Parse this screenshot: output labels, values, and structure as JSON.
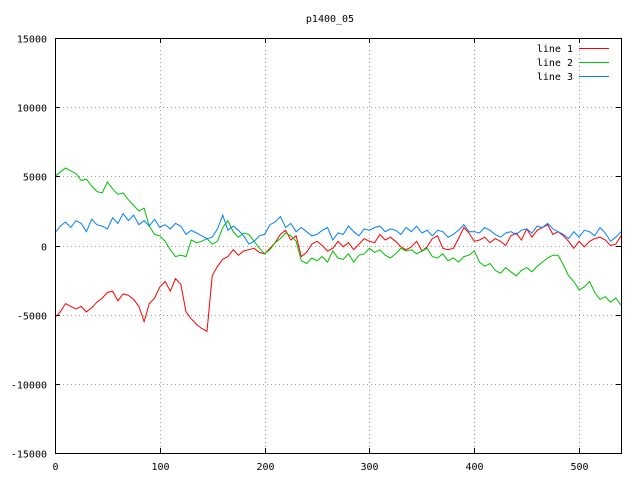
{
  "chart_data": {
    "type": "line",
    "title": "p1400_05",
    "xlabel": "",
    "ylabel": "",
    "xlim": [
      0,
      540
    ],
    "ylim": [
      -15000,
      15000
    ],
    "xticks": [
      0,
      100,
      200,
      300,
      400,
      500
    ],
    "yticks": [
      -15000,
      -10000,
      -5000,
      0,
      5000,
      10000,
      15000
    ],
    "grid": true,
    "legend_position": "top-right",
    "series": [
      {
        "name": "line 1",
        "color": "#ff0000",
        "x": [
          0,
          5,
          10,
          15,
          20,
          25,
          30,
          35,
          40,
          45,
          50,
          55,
          60,
          65,
          70,
          75,
          80,
          85,
          90,
          95,
          100,
          105,
          110,
          115,
          120,
          125,
          130,
          135,
          140,
          145,
          150,
          155,
          160,
          165,
          170,
          175,
          180,
          185,
          190,
          195,
          200,
          205,
          210,
          215,
          220,
          225,
          230,
          235,
          240,
          245,
          250,
          255,
          260,
          265,
          270,
          275,
          280,
          285,
          290,
          295,
          300,
          305,
          310,
          315,
          320,
          325,
          330,
          335,
          340,
          345,
          350,
          355,
          360,
          365,
          370,
          375,
          380,
          385,
          390,
          395,
          400,
          405,
          410,
          415,
          420,
          425,
          430,
          435,
          440,
          445,
          450,
          455,
          460,
          465,
          470,
          475,
          480,
          485,
          490,
          495,
          500,
          505,
          510,
          515,
          520,
          525,
          530,
          535,
          540
        ],
        "y": [
          -5200,
          -4800,
          -4200,
          -4400,
          -4600,
          -4400,
          -4800,
          -4500,
          -4100,
          -3800,
          -3400,
          -3300,
          -4000,
          -3500,
          -3600,
          -3900,
          -4400,
          -5500,
          -4200,
          -3800,
          -3000,
          -2600,
          -3300,
          -2400,
          -2800,
          -4800,
          -5300,
          -5700,
          -6000,
          -6200,
          -2200,
          -1500,
          -1000,
          -800,
          -300,
          -700,
          -400,
          -300,
          -200,
          -500,
          -600,
          -200,
          200,
          800,
          1100,
          400,
          700,
          -800,
          -500,
          100,
          300,
          0,
          -400,
          -200,
          300,
          -100,
          200,
          -300,
          100,
          500,
          300,
          200,
          800,
          400,
          600,
          300,
          -100,
          -300,
          -100,
          300,
          -400,
          -100,
          500,
          700,
          -200,
          -300,
          -200,
          500,
          1300,
          900,
          300,
          400,
          600,
          200,
          500,
          300,
          0,
          700,
          900,
          400,
          1200,
          600,
          1100,
          1300,
          1500,
          800,
          1000,
          700,
          300,
          -200,
          300,
          -100,
          300,
          500,
          600,
          400,
          0,
          100,
          700
        ]
      },
      {
        "name": "line 2",
        "color": "#00c000",
        "x": [
          0,
          5,
          10,
          15,
          20,
          25,
          30,
          35,
          40,
          45,
          50,
          55,
          60,
          65,
          70,
          75,
          80,
          85,
          90,
          95,
          100,
          105,
          110,
          115,
          120,
          125,
          130,
          135,
          140,
          145,
          150,
          155,
          160,
          165,
          170,
          175,
          180,
          185,
          190,
          195,
          200,
          205,
          210,
          215,
          220,
          225,
          230,
          235,
          240,
          245,
          250,
          255,
          260,
          265,
          270,
          275,
          280,
          285,
          290,
          295,
          300,
          305,
          310,
          315,
          320,
          325,
          330,
          335,
          340,
          345,
          350,
          355,
          360,
          365,
          370,
          375,
          380,
          385,
          390,
          395,
          400,
          405,
          410,
          415,
          420,
          425,
          430,
          435,
          440,
          445,
          450,
          455,
          460,
          465,
          470,
          475,
          480,
          485,
          490,
          495,
          500,
          505,
          510,
          515,
          520,
          525,
          530,
          535,
          540
        ],
        "y": [
          5000,
          5300,
          5600,
          5400,
          5200,
          4700,
          4800,
          4300,
          3900,
          3800,
          4600,
          4100,
          3700,
          3800,
          3300,
          2900,
          2500,
          2700,
          1400,
          800,
          700,
          300,
          -300,
          -800,
          -700,
          -800,
          400,
          200,
          300,
          500,
          100,
          300,
          1300,
          1800,
          1000,
          600,
          900,
          800,
          300,
          -200,
          -600,
          -300,
          200,
          500,
          900,
          700,
          300,
          -1100,
          -1300,
          -900,
          -1100,
          -800,
          -1200,
          -400,
          -900,
          -1000,
          -600,
          -1200,
          -700,
          -600,
          -200,
          -500,
          -300,
          -700,
          -900,
          -600,
          -200,
          -400,
          -300,
          -600,
          -400,
          -200,
          -800,
          -900,
          -600,
          -1100,
          -900,
          -1200,
          -800,
          -700,
          -400,
          -1200,
          -1500,
          -1300,
          -1800,
          -2000,
          -1600,
          -1900,
          -2200,
          -1800,
          -1600,
          -1900,
          -1500,
          -1200,
          -900,
          -700,
          -700,
          -1400,
          -2200,
          -2600,
          -3200,
          -3000,
          -2600,
          -3400,
          -3900,
          -3700,
          -4100,
          -3800,
          -4300
        ]
      },
      {
        "name": "line 3",
        "color": "#0080ff",
        "x": [
          0,
          5,
          10,
          15,
          20,
          25,
          30,
          35,
          40,
          45,
          50,
          55,
          60,
          65,
          70,
          75,
          80,
          85,
          90,
          95,
          100,
          105,
          110,
          115,
          120,
          125,
          130,
          135,
          140,
          145,
          150,
          155,
          160,
          165,
          170,
          175,
          180,
          185,
          190,
          195,
          200,
          205,
          210,
          215,
          220,
          225,
          230,
          235,
          240,
          245,
          250,
          255,
          260,
          265,
          270,
          275,
          280,
          285,
          290,
          295,
          300,
          305,
          310,
          315,
          320,
          325,
          330,
          335,
          340,
          345,
          350,
          355,
          360,
          365,
          370,
          375,
          380,
          385,
          390,
          395,
          400,
          405,
          410,
          415,
          420,
          425,
          430,
          435,
          440,
          445,
          450,
          455,
          460,
          465,
          470,
          475,
          480,
          485,
          490,
          495,
          500,
          505,
          510,
          515,
          520,
          525,
          530,
          535,
          540
        ],
        "y": [
          900,
          1400,
          1700,
          1300,
          1800,
          1600,
          1000,
          1900,
          1500,
          1400,
          1200,
          2000,
          1600,
          2300,
          1800,
          2200,
          1500,
          1800,
          1400,
          1900,
          1300,
          1500,
          1200,
          1600,
          1400,
          800,
          1100,
          900,
          700,
          500,
          600,
          1200,
          2200,
          1100,
          1400,
          1100,
          700,
          100,
          300,
          700,
          800,
          1500,
          1700,
          2100,
          1300,
          1600,
          1000,
          1300,
          1000,
          700,
          800,
          1100,
          1300,
          400,
          900,
          800,
          1400,
          1000,
          700,
          1200,
          1100,
          1300,
          1400,
          1000,
          1200,
          1100,
          800,
          1300,
          1000,
          1400,
          900,
          1100,
          700,
          1100,
          1000,
          600,
          800,
          1100,
          1500,
          1000,
          1000,
          900,
          1300,
          1100,
          800,
          600,
          900,
          1000,
          800,
          1100,
          1200,
          900,
          1400,
          1300,
          1600,
          1200,
          1000,
          800,
          500,
          1000,
          600,
          1100,
          1000,
          700,
          1300,
          900,
          300,
          600,
          1000
        ]
      }
    ]
  }
}
